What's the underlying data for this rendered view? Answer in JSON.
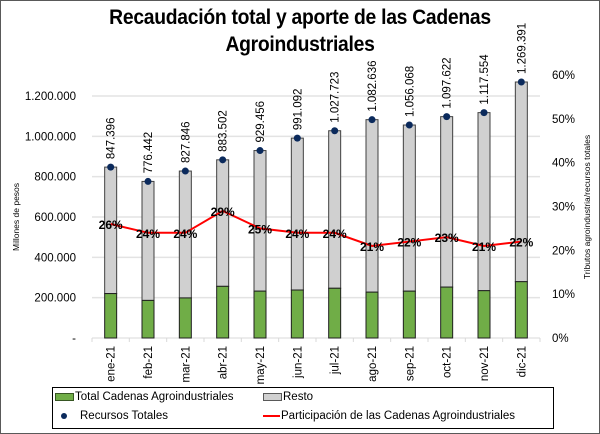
{
  "title_line1": "Recaudación total y aporte de las Cadenas",
  "title_line2": "Agroindustriales",
  "chart_data": {
    "type": "bar",
    "title": "Recaudación total y aporte de las Cadenas Agroindustriales",
    "ylabel": "Millones de pesos",
    "y2label": "Tributos agroindustria / recursos totales",
    "ylim": [
      0,
      1200000
    ],
    "y2lim": [
      0,
      0.6
    ],
    "yticks": [
      "-",
      "200.000",
      "400.000",
      "600.000",
      "800.000",
      "1.000.000",
      "1.200.000"
    ],
    "y2ticks": [
      "0%",
      "10%",
      "20%",
      "30%",
      "40%",
      "50%",
      "60%"
    ],
    "grid": true,
    "legend_position": "bottom",
    "categories": [
      "ene-21",
      "feb-21",
      "mar-21",
      "abr-21",
      "may-21",
      "jun-21",
      "jul-21",
      "ago-21",
      "sep-21",
      "oct-21",
      "nov-21",
      "dic-21"
    ],
    "series": [
      {
        "name": "Total Cadenas Agroindustriales",
        "type": "stacked-bar",
        "color": "#70ad47",
        "values": [
          220300,
          186400,
          198700,
          256200,
          232400,
          237900,
          246700,
          227400,
          232300,
          252500,
          234700,
          279300
        ]
      },
      {
        "name": "Resto",
        "type": "stacked-bar",
        "color": "#d0d0d0",
        "values": [
          627096,
          590042,
          629146,
          627302,
          697056,
          753192,
          781023,
          855236,
          823768,
          845122,
          882854,
          990091
        ]
      },
      {
        "name": "Recursos Totales",
        "type": "scatter",
        "color": "#0b2a5c",
        "values": [
          847396,
          776442,
          827846,
          883502,
          929456,
          991092,
          1027723,
          1082636,
          1056068,
          1097622,
          1117554,
          1269391
        ],
        "labels": [
          "847.396",
          "776.442",
          "827.846",
          "883.502",
          "929.456",
          "991.092",
          "1.027.723",
          "1.082.636",
          "1.056.068",
          "1.097.622",
          "1.117.554",
          "1.269.391"
        ]
      },
      {
        "name": "Participación de las Cadenas Agroindustriales",
        "type": "line",
        "axis": "secondary",
        "color": "#ff0000",
        "values": [
          0.26,
          0.24,
          0.24,
          0.29,
          0.25,
          0.24,
          0.24,
          0.21,
          0.22,
          0.23,
          0.21,
          0.22
        ],
        "labels": [
          "26%",
          "24%",
          "24%",
          "29%",
          "25%",
          "24%",
          "24%",
          "21%",
          "22%",
          "23%",
          "21%",
          "22%"
        ]
      }
    ]
  }
}
